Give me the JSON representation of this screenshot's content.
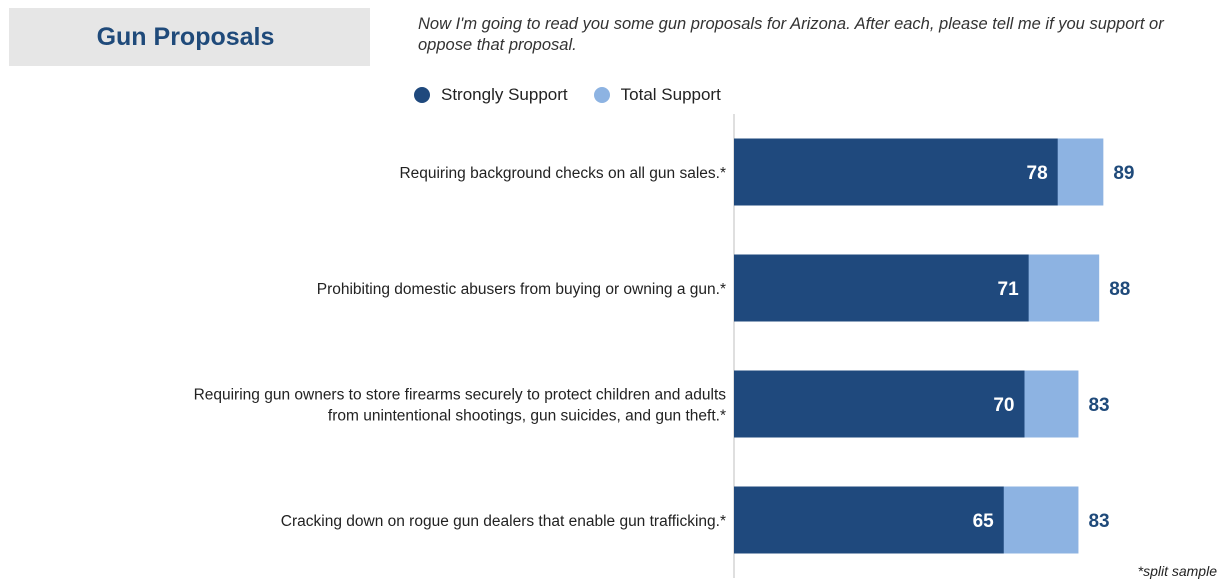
{
  "header": {
    "title": "Gun Proposals",
    "question": "Now I'm going to read you some gun proposals for Arizona. After each, please tell me if you support or oppose that proposal."
  },
  "legend": {
    "items": [
      {
        "label": "Strongly Support",
        "color": "#1f497d"
      },
      {
        "label": "Total Support",
        "color": "#8db3e2"
      }
    ]
  },
  "footnote": "*split sample",
  "chart_data": {
    "type": "bar",
    "orientation": "horizontal",
    "stacked": "overlay",
    "categories": [
      [
        "Requiring background checks on all gun sales.*"
      ],
      [
        "Prohibiting domestic abusers from buying or owning a gun.*"
      ],
      [
        "Requiring gun owners to store firearms securely to protect children and adults",
        "from unintentional shootings, gun suicides, and gun theft.*"
      ],
      [
        "Cracking down on rogue gun dealers that enable gun trafficking.*"
      ]
    ],
    "series": [
      {
        "name": "Strongly Support",
        "values": [
          78,
          71,
          70,
          65
        ],
        "color": "#1f497d"
      },
      {
        "name": "Total Support",
        "values": [
          89,
          88,
          83,
          83
        ],
        "color": "#8db3e2"
      }
    ],
    "xlim": [
      0,
      100
    ],
    "grid": false,
    "legend_position": "top"
  }
}
